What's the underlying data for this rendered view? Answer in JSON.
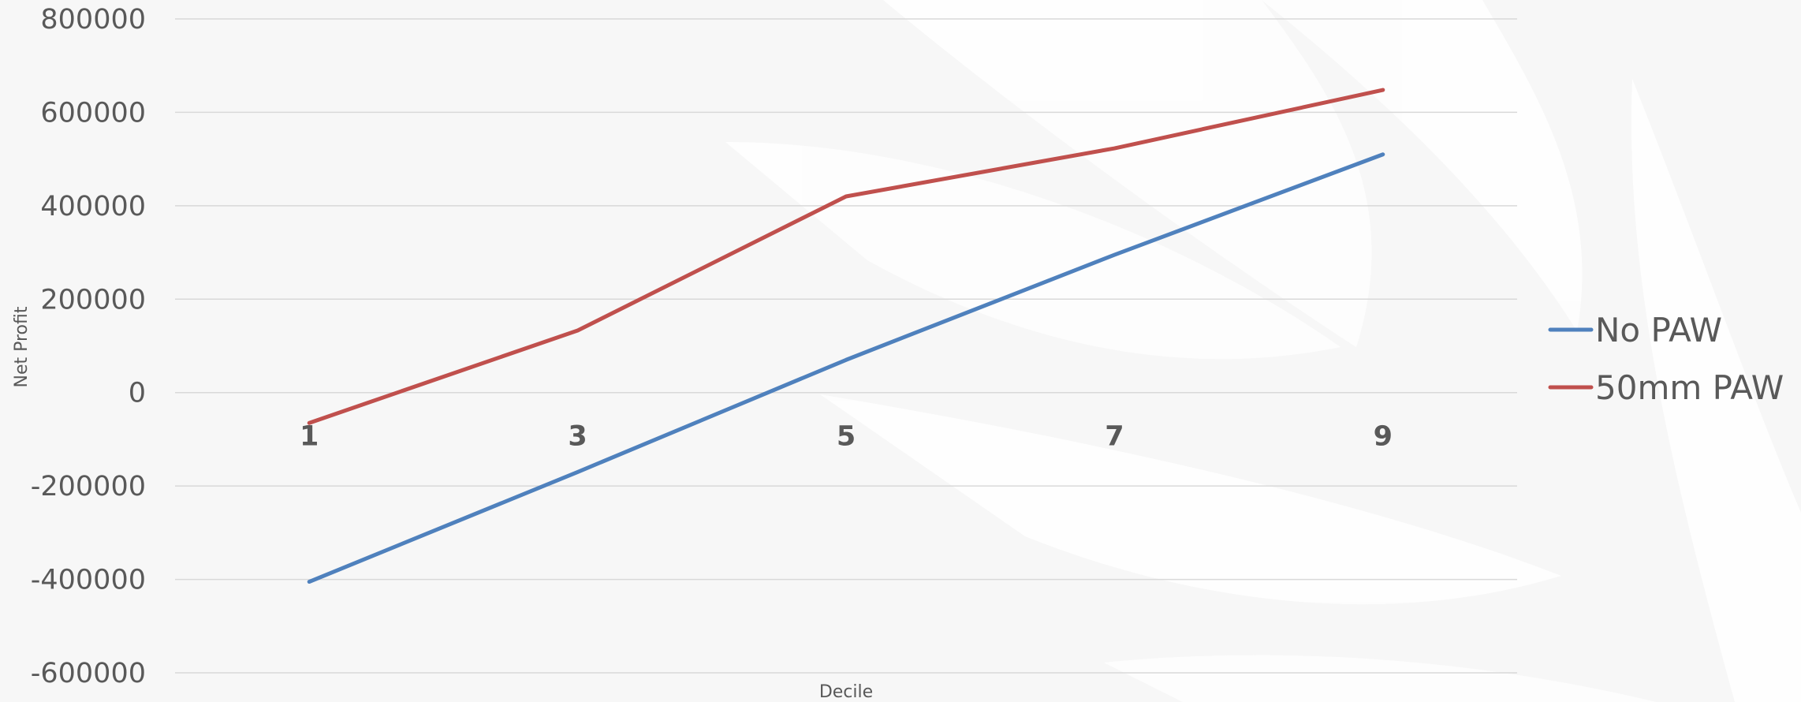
{
  "chart_data": {
    "type": "line",
    "title": "",
    "xlabel": "Decile",
    "ylabel": "Net Profit",
    "categories": [
      "1",
      "3",
      "5",
      "7",
      "9"
    ],
    "yticks": [
      "800000",
      "600000",
      "400000",
      "200000",
      "0",
      "-200000",
      "-400000",
      "-600000"
    ],
    "ylim": [
      -600000,
      800000
    ],
    "grid": true,
    "legend_position": "right",
    "series": [
      {
        "name": "No PAW",
        "color": "#4f81bd",
        "values": [
          -405000,
          -170000,
          70000,
          295000,
          510000
        ]
      },
      {
        "name": "50mm PAW",
        "color": "#c0504d",
        "values": [
          -65000,
          133000,
          420000,
          523000,
          648000
        ]
      }
    ]
  },
  "colors": {
    "background": "#f7f7f7",
    "grid": "#d9d9d9",
    "text": "#595959"
  }
}
